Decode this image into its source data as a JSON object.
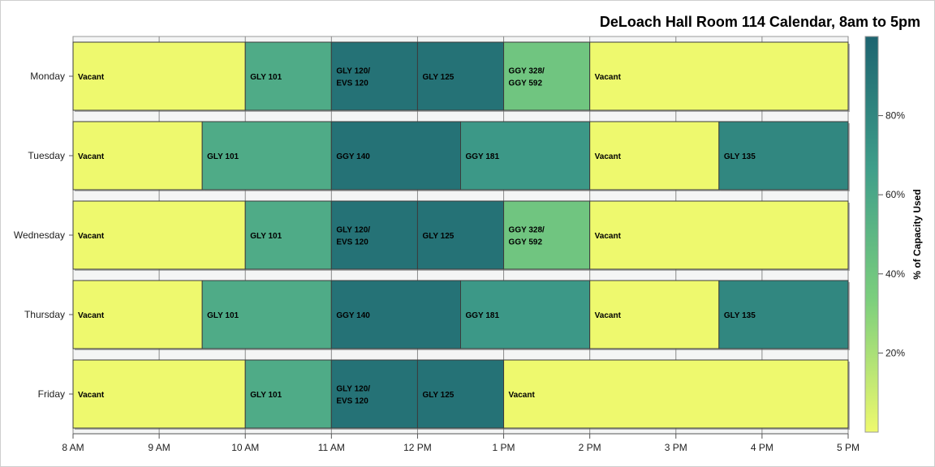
{
  "chart_data": {
    "type": "bar",
    "orientation": "horizontal-timeline",
    "title": "DeLoach Hall Room 114 Calendar, 8am to 5pm",
    "x_range_hours": [
      8,
      17
    ],
    "x_ticks": [
      {
        "hour": 8,
        "label": "8 AM"
      },
      {
        "hour": 9,
        "label": "9 AM"
      },
      {
        "hour": 10,
        "label": "10 AM"
      },
      {
        "hour": 11,
        "label": "11 AM"
      },
      {
        "hour": 12,
        "label": "12 PM"
      },
      {
        "hour": 13,
        "label": "1 PM"
      },
      {
        "hour": 14,
        "label": "2 PM"
      },
      {
        "hour": 15,
        "label": "3 PM"
      },
      {
        "hour": 16,
        "label": "4 PM"
      },
      {
        "hour": 17,
        "label": "5 PM"
      }
    ],
    "grid": true,
    "days": [
      {
        "name": "Monday",
        "segments": [
          {
            "label": [
              "Vacant"
            ],
            "start": 8,
            "end": 10,
            "capacity": 0
          },
          {
            "label": [
              "GLY 101"
            ],
            "start": 10,
            "end": 11,
            "capacity": 58
          },
          {
            "label": [
              "GLY 120/",
              "EVS 120"
            ],
            "start": 11,
            "end": 12,
            "capacity": 92
          },
          {
            "label": [
              "GLY 125"
            ],
            "start": 12,
            "end": 13,
            "capacity": 92
          },
          {
            "label": [
              "GGY 328/",
              "GGY 592"
            ],
            "start": 13,
            "end": 14,
            "capacity": 40
          },
          {
            "label": [
              "Vacant"
            ],
            "start": 14,
            "end": 17,
            "capacity": 0
          }
        ]
      },
      {
        "name": "Tuesday",
        "segments": [
          {
            "label": [
              "Vacant"
            ],
            "start": 8,
            "end": 9.5,
            "capacity": 0
          },
          {
            "label": [
              "GLY 101"
            ],
            "start": 9.5,
            "end": 11,
            "capacity": 58
          },
          {
            "label": [
              "GGY 140"
            ],
            "start": 11,
            "end": 12.5,
            "capacity": 92
          },
          {
            "label": [
              "GGY 181"
            ],
            "start": 12.5,
            "end": 14,
            "capacity": 70
          },
          {
            "label": [
              "Vacant"
            ],
            "start": 14,
            "end": 15.5,
            "capacity": 0
          },
          {
            "label": [
              "GLY 135"
            ],
            "start": 15.5,
            "end": 17,
            "capacity": 80
          }
        ]
      },
      {
        "name": "Wednesday",
        "segments": [
          {
            "label": [
              "Vacant"
            ],
            "start": 8,
            "end": 10,
            "capacity": 0
          },
          {
            "label": [
              "GLY 101"
            ],
            "start": 10,
            "end": 11,
            "capacity": 58
          },
          {
            "label": [
              "GLY 120/",
              "EVS 120"
            ],
            "start": 11,
            "end": 12,
            "capacity": 92
          },
          {
            "label": [
              "GLY 125"
            ],
            "start": 12,
            "end": 13,
            "capacity": 92
          },
          {
            "label": [
              "GGY 328/",
              "GGY 592"
            ],
            "start": 13,
            "end": 14,
            "capacity": 40
          },
          {
            "label": [
              "Vacant"
            ],
            "start": 14,
            "end": 17,
            "capacity": 0
          }
        ]
      },
      {
        "name": "Thursday",
        "segments": [
          {
            "label": [
              "Vacant"
            ],
            "start": 8,
            "end": 9.5,
            "capacity": 0
          },
          {
            "label": [
              "GLY 101"
            ],
            "start": 9.5,
            "end": 11,
            "capacity": 58
          },
          {
            "label": [
              "GGY 140"
            ],
            "start": 11,
            "end": 12.5,
            "capacity": 92
          },
          {
            "label": [
              "GGY 181"
            ],
            "start": 12.5,
            "end": 14,
            "capacity": 70
          },
          {
            "label": [
              "Vacant"
            ],
            "start": 14,
            "end": 15.5,
            "capacity": 0
          },
          {
            "label": [
              "GLY 135"
            ],
            "start": 15.5,
            "end": 17,
            "capacity": 80
          }
        ]
      },
      {
        "name": "Friday",
        "segments": [
          {
            "label": [
              "Vacant"
            ],
            "start": 8,
            "end": 10,
            "capacity": 0
          },
          {
            "label": [
              "GLY 101"
            ],
            "start": 10,
            "end": 11,
            "capacity": 58
          },
          {
            "label": [
              "GLY 120/",
              "EVS 120"
            ],
            "start": 11,
            "end": 12,
            "capacity": 92
          },
          {
            "label": [
              "GLY 125"
            ],
            "start": 12,
            "end": 13,
            "capacity": 92
          },
          {
            "label": [
              "Vacant"
            ],
            "start": 13,
            "end": 17,
            "capacity": 0
          }
        ]
      }
    ],
    "colorbar": {
      "label": "% of Capacity Used",
      "range": [
        0,
        100
      ],
      "ticks": [
        {
          "value": 20,
          "label": "20%"
        },
        {
          "value": 40,
          "label": "40%"
        },
        {
          "value": 60,
          "label": "60%"
        },
        {
          "value": 80,
          "label": "80%"
        }
      ],
      "stops": [
        "#eef96e",
        "#7ccf7d",
        "#3f9e8a",
        "#1d6470"
      ]
    }
  }
}
